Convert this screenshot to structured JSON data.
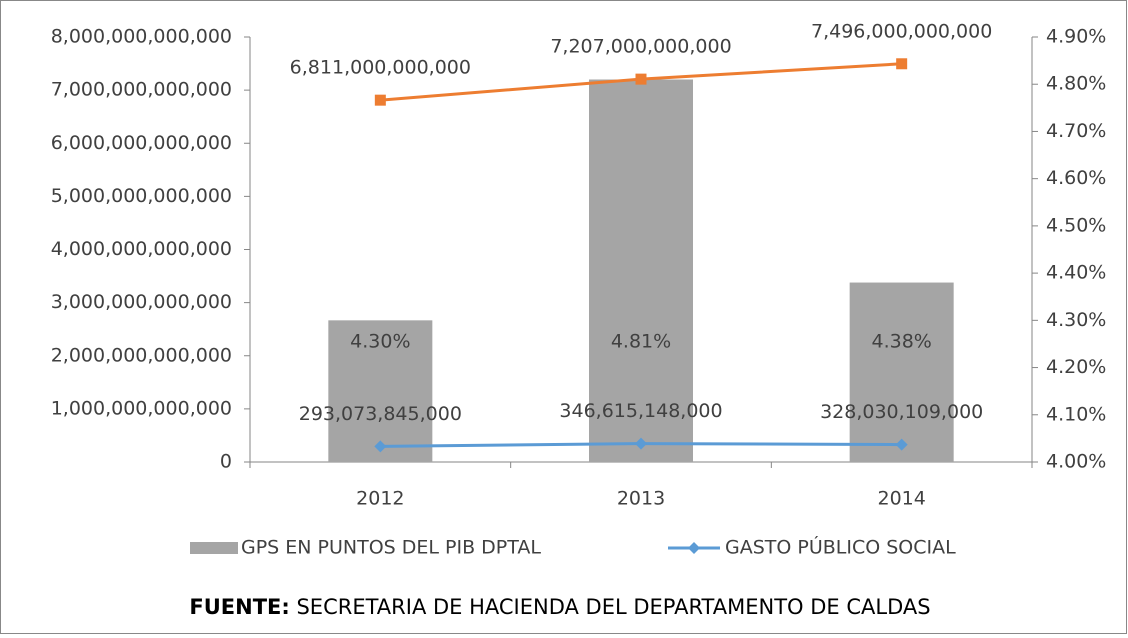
{
  "chart_data": {
    "type": "bar_line_combo",
    "categories": [
      "2012",
      "2013",
      "2014"
    ],
    "series": [
      {
        "name": "GPS EN PUNTOS DEL PIB DPTAL",
        "type": "bar",
        "axis": "y2",
        "color": "#a5a5a5",
        "values": [
          4.3,
          4.81,
          4.38
        ],
        "value_labels": [
          "4.30%",
          "4.81%",
          "4.38%"
        ]
      },
      {
        "type": "line",
        "color": "#ed7d31",
        "values": [
          6811000000000,
          7207000000000,
          7496000000000
        ],
        "value_labels": [
          "6,811,000,000,000",
          "7,207,000,000,000",
          "7,496,000,000,000"
        ]
      },
      {
        "name": "GASTO PÚBLICO SOCIAL",
        "type": "line",
        "color": "#5b9bd5",
        "values": [
          293073845000,
          346615148000,
          328030109000
        ],
        "value_labels": [
          "293,073,845,000",
          "346,615,148,000",
          "328,030,109,000"
        ]
      }
    ],
    "ylim": [
      0,
      8000000000000
    ],
    "yticks": [
      0,
      {
        "value": 1000000000000,
        "label": "1,000,000,000,000"
      },
      {
        "value": 2000000000000,
        "label": "2,000,000,000,000"
      },
      {
        "value": 3000000000000,
        "label": "3,000,000,000,000"
      },
      {
        "value": 4000000000000,
        "label": "4,000,000,000,000"
      },
      {
        "value": 5000000000000,
        "label": "5,000,000,000,000"
      },
      {
        "value": 6000000000000,
        "label": "6,000,000,000,000"
      },
      {
        "value": 7000000000000,
        "label": "7,000,000,000,000"
      },
      {
        "value": 8000000000000,
        "label": "8,000,000,000,000"
      }
    ],
    "y2lim": [
      4.0,
      4.9
    ],
    "y2ticks": [
      {
        "value": 4.0,
        "label": "4.00%"
      },
      {
        "value": 4.1,
        "label": "4.10%"
      },
      {
        "value": 4.2,
        "label": "4.20%"
      },
      {
        "value": 4.3,
        "label": "4.30%"
      },
      {
        "value": 4.4,
        "label": "4.40%"
      },
      {
        "value": 4.5,
        "label": "4.50%"
      },
      {
        "value": 4.6,
        "label": "4.60%"
      },
      {
        "value": 4.7,
        "label": "4.70%"
      },
      {
        "value": 4.8,
        "label": "4.80%"
      },
      {
        "value": 4.9,
        "label": "4.90%"
      }
    ],
    "grid": false,
    "legend": "bottom",
    "source": {
      "label": "FUENTE:",
      "text": "SECRETARIA DE HACIENDA  DEL DEPARTAMENTO DE CALDAS"
    }
  }
}
